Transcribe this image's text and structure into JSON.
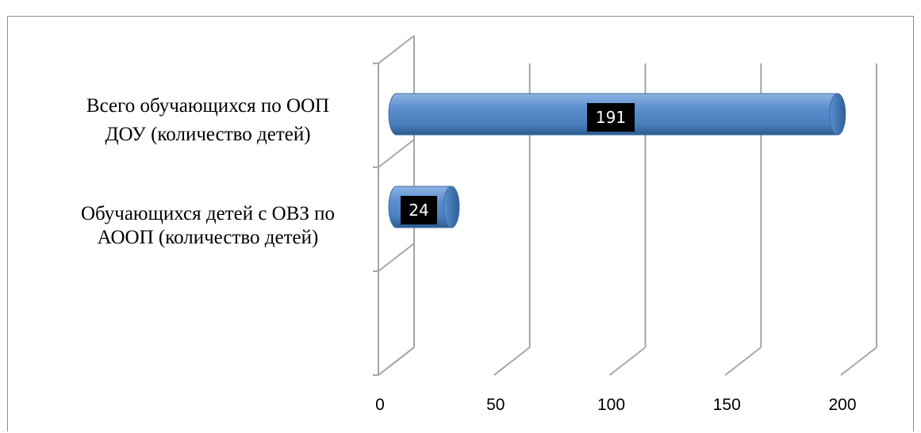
{
  "chart_data": {
    "type": "bar",
    "orientation": "horizontal",
    "style": "3d-cylinder",
    "categories": [
      [
        "Всего обучающихся по ООП",
        "ДОУ (количество детей)"
      ],
      [
        "Обучающихся детей  с ОВЗ по",
        "АООП (количество детей)"
      ]
    ],
    "values": [
      191,
      24
    ],
    "data_labels": [
      "191",
      "24"
    ],
    "xlim": [
      0,
      200
    ],
    "x_ticks": [
      0,
      50,
      100,
      150,
      200
    ],
    "tick_labels": [
      "0",
      "50",
      "100",
      "150",
      "200"
    ],
    "grid": true,
    "legend": "none",
    "bar_color": "#4f81bd",
    "bar_color_dark": "#2c5a8c",
    "bar_color_light": "#8db3e2",
    "label_bg": "#000000",
    "grid_color": "#a6a6a6"
  }
}
